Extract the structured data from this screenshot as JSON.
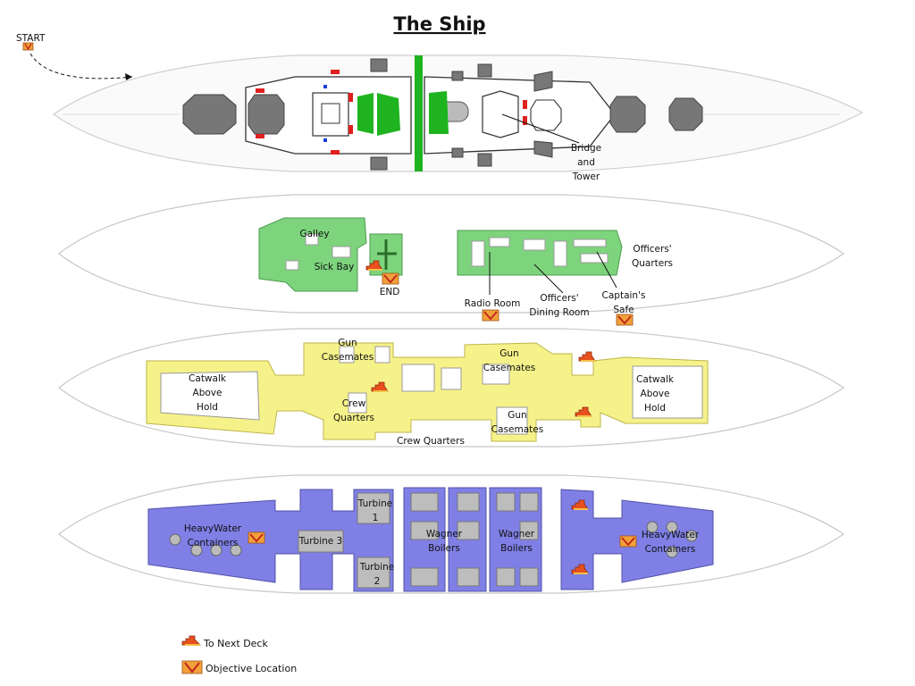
{
  "title": "The Ship",
  "start_label": "START",
  "labels": {
    "bridge": [
      "Bridge",
      "and",
      "Tower"
    ],
    "galley": "Galley",
    "sick_bay": "Sick Bay",
    "end": "END",
    "radio_room": "Radio Room",
    "officers_dining": [
      "Officers'",
      "Dining Room"
    ],
    "captains_safe": [
      "Captain's",
      "Safe"
    ],
    "officers_quarters": [
      "Officers'",
      "Quarters"
    ],
    "gun_casemates_1": [
      "Gun",
      "Casemates"
    ],
    "gun_casemates_2": [
      "Gun",
      "Casemates"
    ],
    "gun_casemates_3": [
      "Gun",
      "Casemates"
    ],
    "catwalk_left": [
      "Catwalk",
      "Above",
      "Hold"
    ],
    "catwalk_right": [
      "Catwalk",
      "Above",
      "Hold"
    ],
    "crew_quarters_1": [
      "Crew",
      "Quarters"
    ],
    "crew_quarters_2": "Crew Quarters",
    "heavywater_left": [
      "HeavyWater",
      "Containers"
    ],
    "heavywater_right": [
      "HeavyWater",
      "Containers"
    ],
    "turbine_1": [
      "Turbine",
      "1"
    ],
    "turbine_2": [
      "Turbine",
      "2"
    ],
    "turbine_3": "Turbine 3",
    "wagner_1": [
      "Wagner",
      "Boilers"
    ],
    "wagner_2": [
      "Wagner",
      "Boilers"
    ]
  },
  "legend": {
    "next_deck": "To Next Deck",
    "objective": "Objective Location"
  },
  "colors": {
    "deck_2": "#7dd47d",
    "deck_3": "#f6f28a",
    "deck_4": "#7f7fe6",
    "stair_icon": "#e8501e",
    "objective_icon": "#f2a13a"
  },
  "icons": [
    "stairs-icon",
    "objective-icon"
  ]
}
